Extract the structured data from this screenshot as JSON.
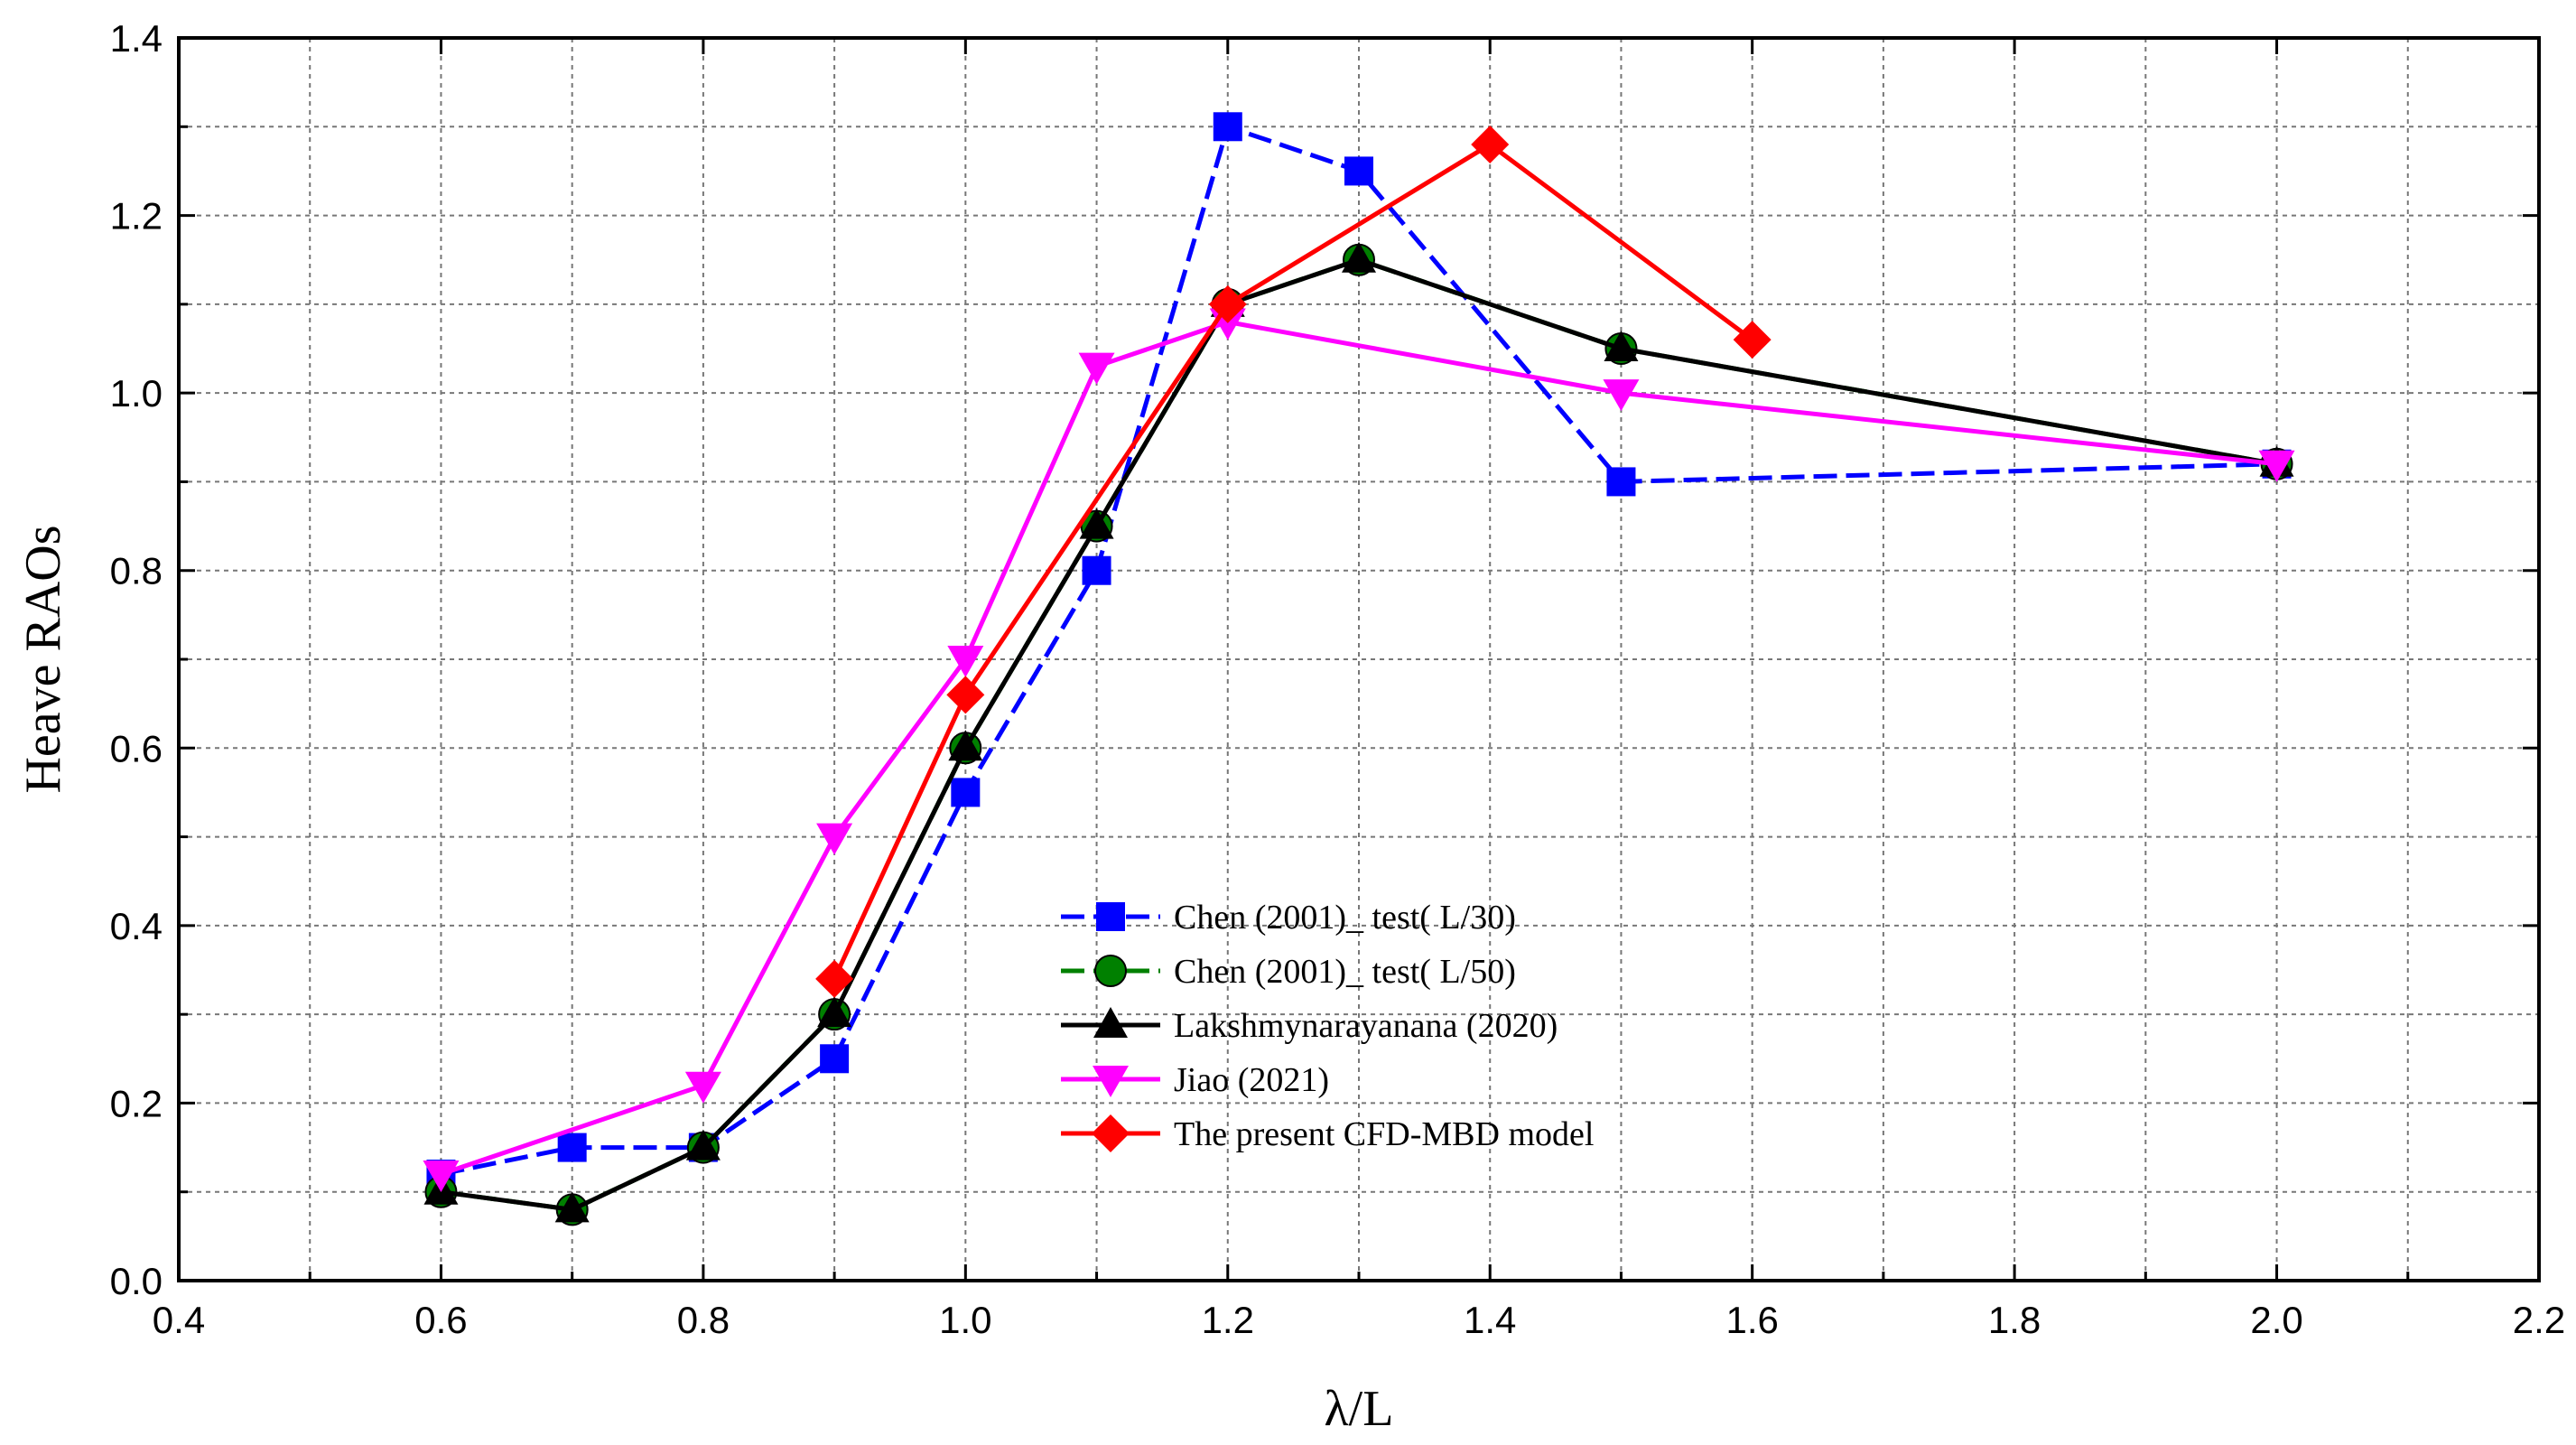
{
  "chart_data": {
    "type": "line",
    "title": "",
    "xlabel": "λ/L",
    "ylabel": "Heave RAOs",
    "xlim": [
      0.4,
      2.2
    ],
    "ylim": [
      0.0,
      1.4
    ],
    "xticks": [
      "0.4",
      "0.6",
      "0.8",
      "1.0",
      "1.2",
      "1.4",
      "1.6",
      "1.8",
      "2.0",
      "2.2"
    ],
    "yticks": [
      "0.0",
      "0.2",
      "0.4",
      "0.6",
      "0.8",
      "1.0",
      "1.2",
      "1.4"
    ],
    "grid": true,
    "legend_position": "center",
    "series": [
      {
        "name": "Chen (2001)_ test( L/30)",
        "color": "#0000ff",
        "marker": "square",
        "dashed": true,
        "x": [
          0.6,
          0.7,
          0.8,
          0.9,
          1.0,
          1.1,
          1.2,
          1.3,
          1.5,
          2.0
        ],
        "y": [
          0.12,
          0.15,
          0.15,
          0.25,
          0.55,
          0.8,
          1.3,
          1.25,
          0.9,
          0.92
        ]
      },
      {
        "name": "Chen (2001)_ test( L/50)",
        "color": "#008000",
        "marker": "circle",
        "dashed": true,
        "x": [
          0.6,
          0.7,
          0.8,
          0.9,
          1.0,
          1.1,
          1.2,
          1.3,
          1.5,
          2.0
        ],
        "y": [
          0.1,
          0.08,
          0.15,
          0.3,
          0.6,
          0.85,
          1.1,
          1.15,
          1.05,
          0.92
        ]
      },
      {
        "name": "Lakshmynarayanana (2020)",
        "color": "#000000",
        "marker": "triangle-up",
        "dashed": false,
        "x": [
          0.6,
          0.7,
          0.8,
          0.9,
          1.0,
          1.1,
          1.2,
          1.3,
          1.5,
          2.0
        ],
        "y": [
          0.1,
          0.08,
          0.15,
          0.3,
          0.6,
          0.85,
          1.1,
          1.15,
          1.05,
          0.92
        ]
      },
      {
        "name": "Jiao (2021)",
        "color": "#ff00ff",
        "marker": "triangle-down",
        "dashed": false,
        "x": [
          0.6,
          0.8,
          0.9,
          1.0,
          1.1,
          1.2,
          1.5,
          2.0
        ],
        "y": [
          0.12,
          0.22,
          0.5,
          0.7,
          1.03,
          1.08,
          1.0,
          0.92
        ]
      },
      {
        "name": "The present CFD-MBD model",
        "color": "#ff0000",
        "marker": "diamond",
        "dashed": false,
        "x": [
          0.9,
          1.0,
          1.2,
          1.4,
          1.6
        ],
        "y": [
          0.34,
          0.66,
          1.1,
          1.28,
          1.06
        ]
      }
    ]
  }
}
